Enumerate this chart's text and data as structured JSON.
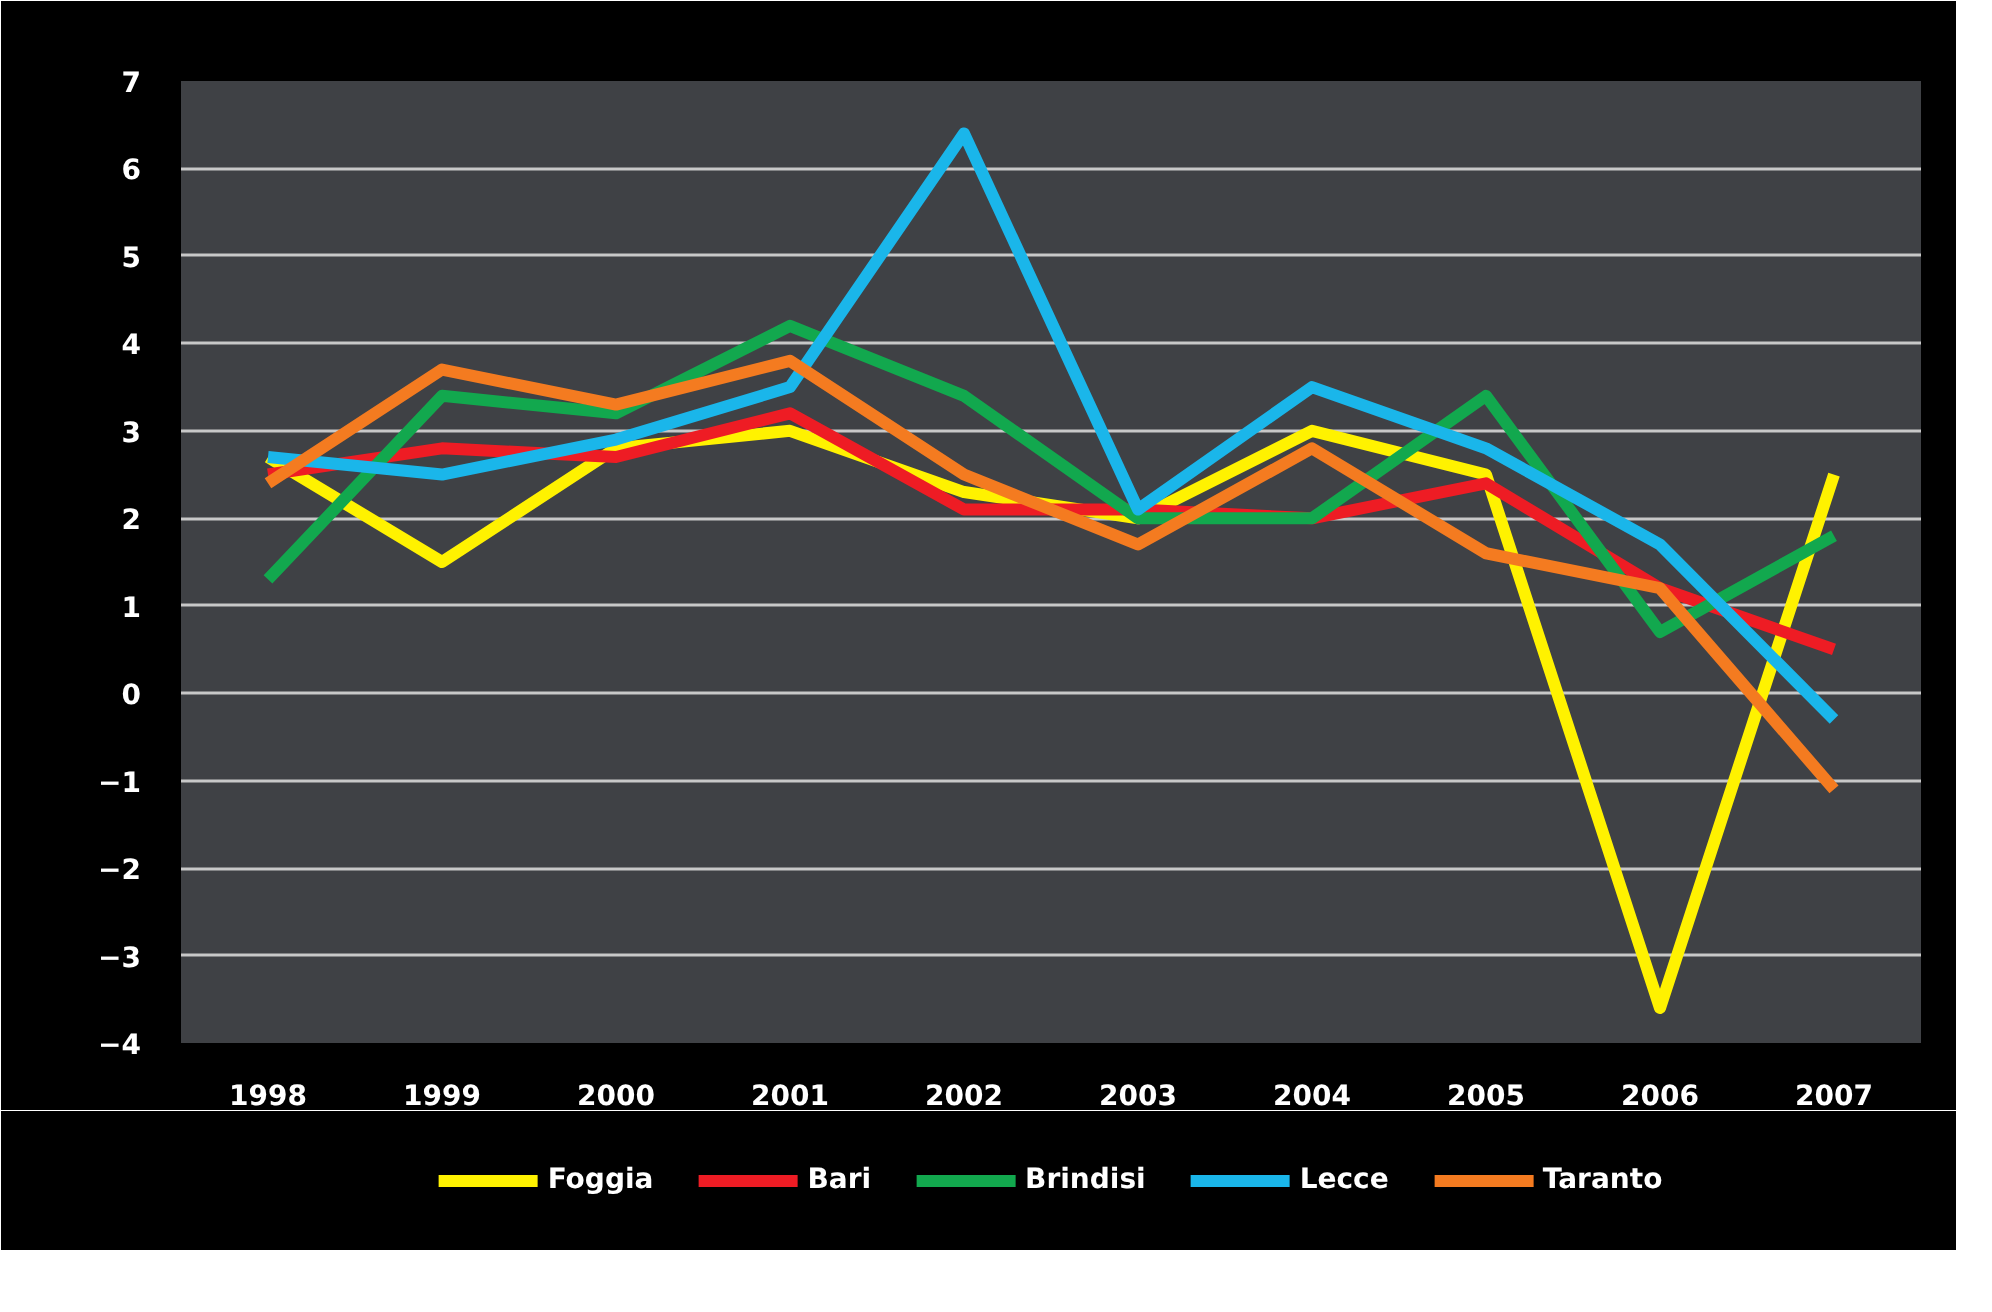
{
  "chart_data": {
    "type": "line",
    "categories": [
      "1998",
      "1999",
      "2000",
      "2001",
      "2002",
      "2003",
      "2004",
      "2005",
      "2006",
      "2007"
    ],
    "series": [
      {
        "name": "Foggia",
        "color": "#fff200",
        "values": [
          2.7,
          1.5,
          2.8,
          3.0,
          2.3,
          2.0,
          3.0,
          2.5,
          -3.6,
          2.5
        ]
      },
      {
        "name": "Bari",
        "color": "#ee1c24",
        "values": [
          2.5,
          2.8,
          2.7,
          3.2,
          2.1,
          2.1,
          2.0,
          2.4,
          1.2,
          0.5
        ]
      },
      {
        "name": "Brindisi",
        "color": "#12a84e",
        "values": [
          1.3,
          3.4,
          3.2,
          4.2,
          3.4,
          2.0,
          2.0,
          3.4,
          0.7,
          1.8
        ]
      },
      {
        "name": "Lecce",
        "color": "#1ab6ea",
        "values": [
          2.7,
          2.5,
          2.9,
          3.5,
          6.4,
          2.1,
          3.5,
          2.8,
          1.7,
          -0.3
        ]
      },
      {
        "name": "Taranto",
        "color": "#f47b20",
        "values": [
          2.4,
          3.7,
          3.3,
          3.8,
          2.5,
          1.7,
          2.8,
          1.6,
          1.2,
          -1.1
        ]
      }
    ],
    "ylim": [
      -4,
      7
    ],
    "yticks": [
      -4,
      -3,
      -2,
      -1,
      0,
      1,
      2,
      3,
      4,
      5,
      6,
      7
    ],
    "grid": "y",
    "legend": "bottom",
    "marker": "none",
    "line_style": "solid"
  }
}
